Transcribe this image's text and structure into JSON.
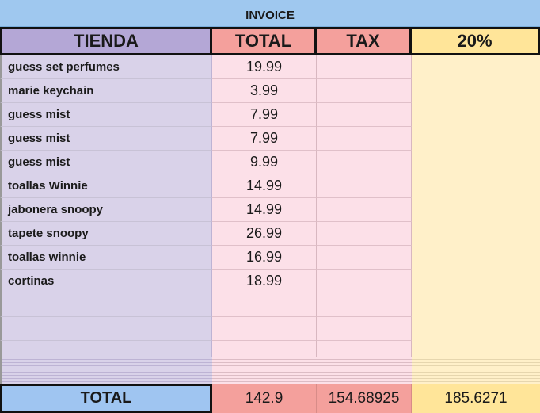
{
  "title": "INVOICE",
  "headers": {
    "store": "TIENDA",
    "total": "TOTAL",
    "tax": "TAX",
    "percent": "20%"
  },
  "items": [
    {
      "name": "guess set perfumes",
      "total": "19.99"
    },
    {
      "name": "marie keychain",
      "total": "3.99"
    },
    {
      "name": "guess mist",
      "total": "7.99"
    },
    {
      "name": "guess mist",
      "total": "7.99"
    },
    {
      "name": "guess mist",
      "total": "9.99"
    },
    {
      "name": "toallas Winnie",
      "total": "14.99"
    },
    {
      "name": "jabonera snoopy",
      "total": "14.99"
    },
    {
      "name": "tapete snoopy",
      "total": "26.99"
    },
    {
      "name": "toallas winnie",
      "total": "16.99"
    },
    {
      "name": "cortinas",
      "total": "18.99"
    },
    {
      "name": "",
      "total": ""
    },
    {
      "name": "",
      "total": ""
    },
    {
      "name": "",
      "total": ""
    }
  ],
  "totals": {
    "label": "TOTAL",
    "total": "142.9",
    "tax": "154.68925",
    "percent": "185.6271"
  },
  "colors": {
    "title_bg": "#9fc8ef",
    "store_col": "#d9d2e9",
    "total_col": "#fce0e8",
    "percent_col": "#fff0c9",
    "header_store": "#b4a7d6",
    "header_total": "#f4a09c",
    "header_percent": "#ffe599",
    "total_label_bg": "#9fc5f1"
  }
}
